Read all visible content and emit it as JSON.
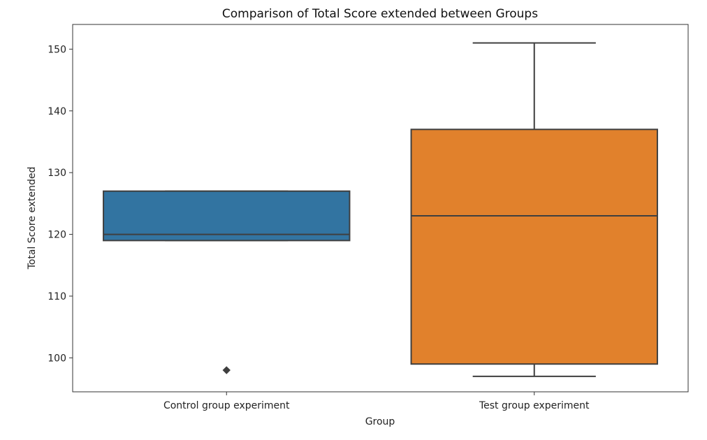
{
  "chart_data": {
    "type": "box",
    "title": "Comparison of Total Score extended between Groups",
    "xlabel": "Group",
    "ylabel": "Total Score extended",
    "ylim": [
      94.5,
      154
    ],
    "yticks": [
      100,
      110,
      120,
      130,
      140,
      150
    ],
    "grid": false,
    "categories": [
      "Control group experiment",
      "Test group experiment"
    ],
    "boxes": [
      {
        "category": "Control group experiment",
        "whisker_low": 119,
        "q1": 119,
        "median": 120,
        "q3": 127,
        "whisker_high": 127,
        "outliers": [
          98
        ],
        "color": "#3274a1"
      },
      {
        "category": "Test group experiment",
        "whisker_low": 97,
        "q1": 99,
        "median": 123,
        "q3": 137,
        "whisker_high": 151,
        "outliers": [],
        "color": "#e1812c"
      }
    ]
  }
}
